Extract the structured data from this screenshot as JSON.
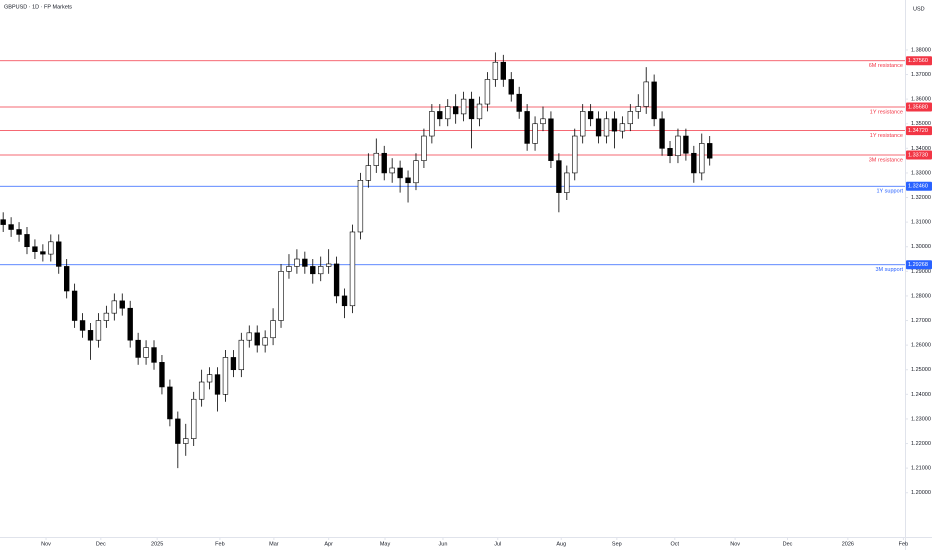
{
  "chart_data": {
    "type": "candlestick",
    "title": "GBPUSD · 1D · FP Markets",
    "y_axis_label": "USD",
    "open": [
      1.311,
      1.309,
      1.307,
      1.305,
      1.3,
      1.298,
      1.297,
      1.302,
      1.292,
      1.282,
      1.27,
      1.266,
      1.262,
      1.27,
      1.273,
      1.278,
      1.275,
      1.262,
      1.255,
      1.259,
      1.253,
      1.243,
      1.23,
      1.22,
      1.222,
      1.238,
      1.245,
      1.248,
      1.24,
      1.255,
      1.25,
      1.262,
      1.265,
      1.26,
      1.263,
      1.27,
      1.29,
      1.292,
      1.295,
      1.292,
      1.289,
      1.292,
      1.293,
      1.28,
      1.276,
      1.306,
      1.327,
      1.333,
      1.338,
      1.33,
      1.332,
      1.328,
      1.326,
      1.335,
      1.345,
      1.355,
      1.352,
      1.357,
      1.354,
      1.36,
      1.352,
      1.358,
      1.368,
      1.375,
      1.368,
      1.362,
      1.355,
      1.342,
      1.35,
      1.352,
      1.335,
      1.322,
      1.33,
      1.345,
      1.355,
      1.352,
      1.345,
      1.352,
      1.347,
      1.35,
      1.355,
      1.357,
      1.367,
      1.352,
      1.34,
      1.337,
      1.345,
      1.338,
      1.33,
      1.342
    ],
    "high": [
      1.314,
      1.312,
      1.31,
      1.308,
      1.303,
      1.301,
      1.305,
      1.305,
      1.295,
      1.285,
      1.273,
      1.269,
      1.273,
      1.276,
      1.281,
      1.281,
      1.278,
      1.265,
      1.262,
      1.262,
      1.256,
      1.246,
      1.233,
      1.228,
      1.241,
      1.25,
      1.251,
      1.251,
      1.258,
      1.258,
      1.265,
      1.268,
      1.268,
      1.266,
      1.275,
      1.293,
      1.297,
      1.299,
      1.298,
      1.295,
      1.296,
      1.299,
      1.296,
      1.283,
      1.309,
      1.33,
      1.338,
      1.344,
      1.341,
      1.336,
      1.335,
      1.331,
      1.338,
      1.348,
      1.358,
      1.358,
      1.36,
      1.362,
      1.363,
      1.363,
      1.361,
      1.371,
      1.379,
      1.378,
      1.371,
      1.365,
      1.358,
      1.353,
      1.357,
      1.355,
      1.338,
      1.333,
      1.348,
      1.358,
      1.358,
      1.355,
      1.355,
      1.355,
      1.353,
      1.358,
      1.362,
      1.373,
      1.37,
      1.355,
      1.343,
      1.348,
      1.348,
      1.341,
      1.346,
      1.345
    ],
    "low": [
      1.306,
      1.304,
      1.302,
      1.297,
      1.295,
      1.294,
      1.294,
      1.289,
      1.279,
      1.267,
      1.263,
      1.254,
      1.259,
      1.267,
      1.27,
      1.272,
      1.259,
      1.252,
      1.252,
      1.25,
      1.24,
      1.227,
      1.21,
      1.215,
      1.219,
      1.235,
      1.242,
      1.233,
      1.237,
      1.247,
      1.247,
      1.259,
      1.257,
      1.257,
      1.26,
      1.267,
      1.287,
      1.289,
      1.289,
      1.285,
      1.286,
      1.289,
      1.277,
      1.271,
      1.273,
      1.303,
      1.324,
      1.33,
      1.327,
      1.326,
      1.322,
      1.318,
      1.323,
      1.332,
      1.342,
      1.349,
      1.349,
      1.35,
      1.351,
      1.34,
      1.349,
      1.355,
      1.365,
      1.365,
      1.359,
      1.352,
      1.339,
      1.339,
      1.347,
      1.332,
      1.314,
      1.319,
      1.327,
      1.342,
      1.349,
      1.342,
      1.342,
      1.34,
      1.344,
      1.347,
      1.352,
      1.354,
      1.349,
      1.337,
      1.334,
      1.334,
      1.335,
      1.326,
      1.327,
      1.333
    ],
    "close": [
      1.309,
      1.307,
      1.305,
      1.3,
      1.298,
      1.297,
      1.302,
      1.292,
      1.282,
      1.27,
      1.266,
      1.262,
      1.27,
      1.273,
      1.278,
      1.275,
      1.262,
      1.255,
      1.259,
      1.253,
      1.243,
      1.23,
      1.22,
      1.222,
      1.238,
      1.245,
      1.248,
      1.24,
      1.255,
      1.25,
      1.262,
      1.265,
      1.26,
      1.263,
      1.27,
      1.29,
      1.292,
      1.295,
      1.292,
      1.289,
      1.292,
      1.293,
      1.28,
      1.276,
      1.306,
      1.327,
      1.333,
      1.338,
      1.33,
      1.332,
      1.328,
      1.326,
      1.335,
      1.345,
      1.355,
      1.352,
      1.357,
      1.354,
      1.36,
      1.352,
      1.358,
      1.368,
      1.375,
      1.368,
      1.362,
      1.355,
      1.342,
      1.35,
      1.352,
      1.335,
      1.322,
      1.33,
      1.345,
      1.355,
      1.352,
      1.345,
      1.352,
      1.347,
      1.35,
      1.355,
      1.357,
      1.367,
      1.352,
      1.34,
      1.337,
      1.345,
      1.338,
      1.33,
      1.342,
      1.336
    ],
    "up_color": "#ffffff",
    "down_color": "#000000",
    "levels": {
      "names": [
        "6M resistance",
        "1Y resistance",
        "1Y resistance",
        "3M resistance",
        "1Y support",
        "3M support"
      ],
      "values": [
        1.3756,
        1.3568,
        1.3472,
        1.3373,
        1.3246,
        1.29268
      ],
      "value_labels": [
        "1.37560",
        "1.35680",
        "1.34720",
        "1.33730",
        "1.32460",
        "1.29268"
      ],
      "colors": [
        "#f23645",
        "#f23645",
        "#f23645",
        "#f23645",
        "#2962ff",
        "#2962ff"
      ]
    },
    "xlim": [
      0,
      114
    ],
    "xticks": [
      {
        "value": 5.8,
        "label": "Nov"
      },
      {
        "value": 12.7,
        "label": "Dec"
      },
      {
        "value": 19.8,
        "label": "2025"
      },
      {
        "value": 27.7,
        "label": "Feb"
      },
      {
        "value": 34.5,
        "label": "Mar"
      },
      {
        "value": 41.4,
        "label": "Apr"
      },
      {
        "value": 48.5,
        "label": "May"
      },
      {
        "value": 55.8,
        "label": "Jun"
      },
      {
        "value": 62.7,
        "label": "Jul"
      },
      {
        "value": 70.7,
        "label": "Aug"
      },
      {
        "value": 77.7,
        "label": "Sep"
      },
      {
        "value": 85,
        "label": "Oct"
      },
      {
        "value": 92.6,
        "label": "Nov"
      },
      {
        "value": 99.2,
        "label": "Dec"
      },
      {
        "value": 106.8,
        "label": "2026"
      },
      {
        "value": 113.8,
        "label": "Feb"
      }
    ],
    "ylim": [
      1.182,
      1.4003
    ],
    "yticks": [
      {
        "value": 1.2,
        "label": "1.20000"
      },
      {
        "value": 1.21,
        "label": "1.21000"
      },
      {
        "value": 1.22,
        "label": "1.22000"
      },
      {
        "value": 1.23,
        "label": "1.23000"
      },
      {
        "value": 1.24,
        "label": "1.24000"
      },
      {
        "value": 1.25,
        "label": "1.25000"
      },
      {
        "value": 1.26,
        "label": "1.26000"
      },
      {
        "value": 1.27,
        "label": "1.27000"
      },
      {
        "value": 1.28,
        "label": "1.28000"
      },
      {
        "value": 1.29,
        "label": "1.29000"
      },
      {
        "value": 1.3,
        "label": "1.30000"
      },
      {
        "value": 1.31,
        "label": "1.31000"
      },
      {
        "value": 1.32,
        "label": "1.32000"
      },
      {
        "value": 1.33,
        "label": "1.33000"
      },
      {
        "value": 1.34,
        "label": "1.34000"
      },
      {
        "value": 1.35,
        "label": "1.35000"
      },
      {
        "value": 1.36,
        "label": "1.36000"
      },
      {
        "value": 1.37,
        "label": "1.37000"
      },
      {
        "value": 1.38,
        "label": "1.38000"
      }
    ],
    "grid": false
  }
}
